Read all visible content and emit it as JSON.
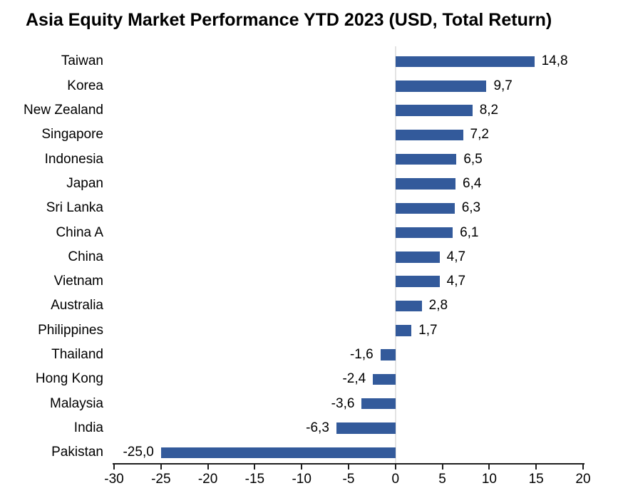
{
  "colors": {
    "bar": "#335A9B",
    "zero_line": "#E3E3E3",
    "axis": "#1F1F1F",
    "text": "#000000",
    "background": "#FFFFFF"
  },
  "chart_data": {
    "type": "bar",
    "orientation": "horizontal",
    "title": "Asia Equity Market Performance YTD 2023 (USD, Total Return)",
    "xlabel": "",
    "ylabel": "",
    "categories": [
      "Taiwan",
      "Korea",
      "New Zealand",
      "Singapore",
      "Indonesia",
      "Japan",
      "Sri Lanka",
      "China A",
      "China",
      "Vietnam",
      "Australia",
      "Philippines",
      "Thailand",
      "Hong Kong",
      "Malaysia",
      "India",
      "Pakistan"
    ],
    "values": [
      14.8,
      9.7,
      8.2,
      7.2,
      6.5,
      6.4,
      6.3,
      6.1,
      4.7,
      4.7,
      2.8,
      1.7,
      -1.6,
      -2.4,
      -3.6,
      -6.3,
      -25.0
    ],
    "value_labels": [
      "14,8",
      "9,7",
      "8,2",
      "7,2",
      "6,5",
      "6,4",
      "6,3",
      "6,1",
      "4,7",
      "4,7",
      "2,8",
      "1,7",
      "-1,6",
      "-2,4",
      "-3,6",
      "-6,3",
      "-25,0"
    ],
    "xlim": [
      -30,
      20
    ],
    "xticks": [
      -30,
      -25,
      -20,
      -15,
      -10,
      -5,
      0,
      5,
      10,
      15,
      20
    ],
    "xtick_labels": [
      "-30",
      "-25",
      "-20",
      "-15",
      "-10",
      "-5",
      "0",
      "5",
      "10",
      "15",
      "20"
    ],
    "grid": false,
    "legend": null,
    "decimal_separator": ","
  }
}
